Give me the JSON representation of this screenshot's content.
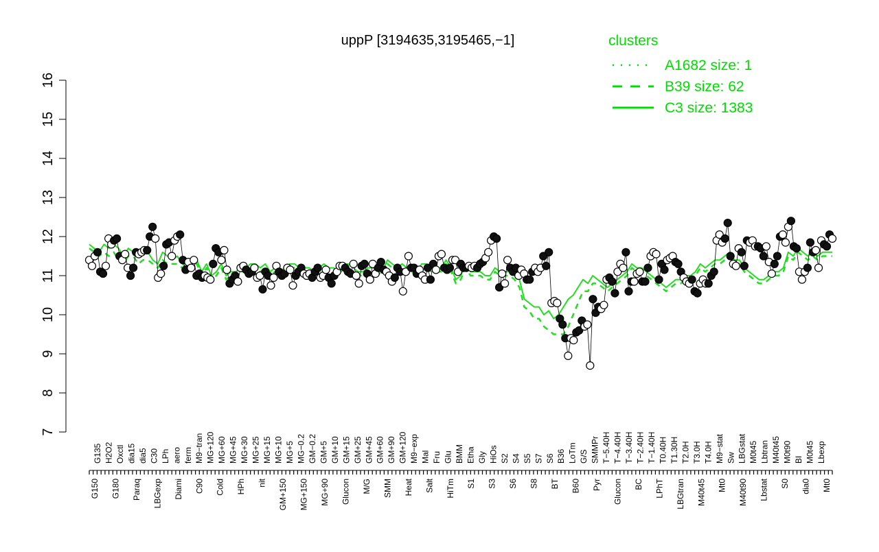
{
  "chart_data": {
    "type": "line",
    "title": "uppP [3194635,3195465,−1]",
    "xlabel": "",
    "ylabel": "",
    "ylim": [
      7,
      16
    ],
    "yticks": [
      "7",
      "8",
      "9",
      "10",
      "11",
      "12",
      "13",
      "14",
      "15",
      "16"
    ],
    "grid": false,
    "legend": {
      "title": "clusters",
      "position": "top-right",
      "color": "#00dd00",
      "entries": [
        {
          "label": "A1682 size: 1",
          "style": "dotted"
        },
        {
          "label": "B39 size: 62",
          "style": "dashed"
        },
        {
          "label": "C3 size: 1383",
          "style": "solid"
        }
      ]
    },
    "x_tick_labels_top": [
      "G135",
      "H2O2",
      "Oxctl",
      "dia15",
      "dia5",
      "C30",
      "LPh",
      "aero",
      "ferm",
      "M9−tran",
      "MG+120",
      "MG+60",
      "MG+45",
      "MG+30",
      "MG+25",
      "MG+15",
      "MG+10",
      "MG+5",
      "MG−0.2",
      "GM−0.2",
      "GM+5",
      "GM+10",
      "GM+15",
      "GM+25",
      "GM+45",
      "GM+60",
      "GM+90",
      "GM+120",
      "M9−exp",
      "Mal",
      "Fru",
      "Glu",
      "BMM",
      "Etha",
      "Gly",
      "HiOs",
      "S2",
      "S4",
      "S5",
      "S7",
      "S6",
      "B36",
      "LoTm",
      "G/S",
      "SMMPr",
      "T−5.40H",
      "T−4.40H",
      "T−3.40H",
      "T−2.40H",
      "T−1.40H",
      "T0.40H",
      "T1.30H",
      "T2.0H",
      "T3.0H",
      "T4.0H",
      "M9−stat",
      "Sw",
      "LBGstat",
      "M0t45",
      "Lbtran",
      "M40t45",
      "M0t90",
      "BI",
      "M0t45",
      "Lbexp"
    ],
    "x_tick_labels_bottom": [
      "G150",
      "G180",
      "Paraq",
      "LBGexp",
      "Diami",
      "C90",
      "Cold",
      "HPh",
      "nit",
      "GM+150",
      "MG+150",
      "MG+90",
      "Glucon",
      "M/G",
      "SMM",
      "Heat",
      "Salt",
      "HiTm",
      "S1",
      "S3",
      "S6",
      "S8",
      "BT",
      "B60",
      "Pyr",
      "Glucon",
      "BC",
      "LPhT",
      "LBGtran",
      "M40t45",
      "Mt0",
      "M40t90",
      "Lbstat",
      "S0",
      "dia0",
      "Mt0"
    ],
    "series": [
      {
        "style": "solid",
        "values": [
          11.8,
          11.7,
          11.6,
          11.8,
          11.7,
          11.8,
          11.7,
          11.5,
          11.7,
          11.6,
          11.5,
          11.7,
          11.6,
          11.4,
          11.3,
          11.6,
          11.5,
          11.4,
          11.5,
          11.3,
          11.2,
          11.4,
          11.4,
          11.1,
          11.3,
          11.0,
          11.1,
          11.3,
          11.0,
          11.1,
          11.1,
          11.2,
          11.2,
          11.3,
          11.3,
          11.2,
          11.3,
          11.1,
          11.2,
          11.1,
          11.2,
          11.3,
          11.3,
          11.2,
          11.2,
          11.2,
          11.1,
          11.2,
          11.3,
          11.2,
          11.2,
          11.1,
          11.3,
          11.3,
          11.2,
          11.1,
          11.1,
          11.2,
          11.2,
          11.2,
          11.1,
          11.4,
          11.3,
          11.2,
          11.3,
          11.2,
          11.2,
          11.1,
          11.3,
          11.3,
          11.2,
          11.2,
          11.2,
          11.4,
          11.2,
          10.9,
          11.0,
          11.3,
          11.1,
          11.1,
          11.1,
          11.0,
          11.0,
          11.2,
          11.1,
          11.1,
          11.1,
          11.0,
          10.9,
          10.4,
          10.3,
          10.2,
          10.2,
          10.0,
          10.1,
          9.9,
          10.0,
          10.2,
          10.4,
          10.5,
          10.7,
          10.9,
          10.8,
          11.0,
          10.9,
          10.8,
          10.7,
          10.8,
          10.9,
          11.0,
          11.1,
          11.3,
          11.2,
          11.2,
          11.1,
          11.0,
          10.9,
          10.8,
          10.7,
          10.8,
          10.9,
          10.9,
          11.0,
          11.0,
          11.1,
          11.3,
          11.2,
          11.3,
          11.4,
          11.4,
          11.5,
          11.6,
          11.4,
          11.4,
          11.2,
          11.1,
          11.0,
          10.9,
          10.9,
          11.0,
          11.1,
          11.1,
          11.2,
          11.6,
          11.5,
          11.7,
          11.6,
          11.5,
          11.6,
          11.5,
          11.6,
          11.6,
          11.6
        ]
      },
      {
        "style": "dashed",
        "values": [
          11.7,
          11.6,
          11.5,
          11.6,
          11.5,
          11.6,
          11.4,
          11.3,
          11.5,
          11.5,
          11.3,
          11.4,
          11.4,
          11.3,
          11.2,
          11.4,
          11.3,
          11.3,
          11.3,
          11.2,
          11.1,
          11.3,
          11.3,
          11.0,
          11.2,
          10.9,
          11.0,
          11.2,
          10.9,
          11.0,
          11.0,
          11.1,
          11.1,
          11.2,
          11.2,
          11.1,
          11.2,
          11.0,
          11.1,
          11.0,
          11.1,
          11.2,
          11.2,
          11.1,
          11.1,
          11.1,
          11.0,
          11.1,
          11.2,
          11.1,
          11.1,
          11.0,
          11.2,
          11.2,
          11.1,
          11.0,
          11.0,
          11.1,
          11.1,
          11.1,
          11.0,
          11.3,
          11.2,
          11.1,
          11.2,
          11.1,
          11.1,
          11.0,
          11.2,
          11.2,
          11.1,
          11.1,
          11.1,
          11.3,
          11.1,
          10.8,
          10.9,
          11.2,
          11.0,
          11.0,
          11.0,
          10.9,
          10.9,
          11.1,
          11.0,
          11.0,
          11.0,
          10.9,
          10.7,
          10.2,
          10.1,
          9.9,
          9.9,
          9.7,
          9.6,
          9.5,
          9.5,
          9.5,
          9.7,
          10.0,
          10.3,
          10.6,
          10.6,
          10.8,
          10.8,
          10.7,
          10.6,
          10.7,
          10.8,
          10.9,
          11.0,
          11.2,
          11.1,
          11.1,
          11.0,
          10.9,
          10.8,
          10.7,
          10.6,
          10.7,
          10.8,
          10.8,
          10.9,
          10.9,
          11.0,
          11.2,
          11.1,
          11.2,
          11.3,
          11.3,
          11.4,
          11.5,
          11.3,
          11.3,
          11.1,
          11.0,
          10.9,
          10.8,
          10.8,
          10.9,
          11.0,
          11.0,
          11.1,
          11.5,
          11.4,
          11.6,
          11.5,
          11.4,
          11.5,
          11.4,
          11.5,
          11.5,
          11.5
        ]
      }
    ],
    "points": [
      11.4,
      11.25,
      11.5,
      11.6,
      11.1,
      11.05,
      11.25,
      11.95,
      11.8,
      11.9,
      11.95,
      11.5,
      11.4,
      11.55,
      11.2,
      11.0,
      11.2,
      11.6,
      11.55,
      11.6,
      11.65,
      11.65,
      12.0,
      12.25,
      11.95,
      10.95,
      11.05,
      11.25,
      11.8,
      11.85,
      11.5,
      11.9,
      12.0,
      12.05,
      11.4,
      11.15,
      11.35,
      11.2,
      11.4,
      11.0,
      11.05,
      10.95,
      11.0,
      10.95,
      10.9,
      11.3,
      11.7,
      11.6,
      11.4,
      11.65,
      11.15,
      10.8,
      10.9,
      11.0,
      10.85,
      11.2,
      11.25,
      11.15,
      11.05,
      11.1,
      11.2,
      10.95,
      11.0,
      10.65,
      11.1,
      11.0,
      10.75,
      10.95,
      11.25,
      11.1,
      11.0,
      11.05,
      11.2,
      11.15,
      10.75,
      11.0,
      11.1,
      11.2,
      11.05,
      11.0,
      11.05,
      10.95,
      11.1,
      11.2,
      10.95,
      11.0,
      11.15,
      10.95,
      10.8,
      11.0,
      11.1,
      11.25,
      11.25,
      11.2,
      11.1,
      11.05,
      11.3,
      11.0,
      10.8,
      11.25,
      11.3,
      11.05,
      10.9,
      11.3,
      11.05,
      11.2,
      11.35,
      11.15,
      11.1,
      11.0,
      10.85,
      10.95,
      11.2,
      11.1,
      10.6,
      11.1,
      11.5,
      11.2,
      11.2,
      11.05,
      11.15,
      11.0,
      10.9,
      11.2,
      10.9,
      11.3,
      11.15,
      11.5,
      11.55,
      11.2,
      11.15,
      11.2,
      11.4,
      11.4,
      11.1,
      11.3,
      11.2,
      11.2,
      11.25,
      11.2,
      11.25,
      11.2,
      11.3,
      11.35,
      11.45,
      11.6,
      11.9,
      12.0,
      11.95,
      10.7,
      11.05,
      10.8,
      11.4,
      11.2,
      11.1,
      11.2,
      11.0,
      11.15,
      11.05,
      10.9,
      10.9,
      11.1,
      11.2,
      11.1,
      11.2,
      11.5,
      11.25,
      11.6,
      10.3,
      10.35,
      10.3,
      9.9,
      9.75,
      9.4,
      8.95,
      9.4,
      9.35,
      9.55,
      9.6,
      9.85,
      9.7,
      9.75,
      8.7,
      10.4,
      10.05,
      10.2,
      10.15,
      10.25,
      10.9,
      10.95,
      10.85,
      10.55,
      11.1,
      11.3,
      11.2,
      11.6,
      10.6,
      10.85,
      10.85,
      11.05,
      11.1,
      10.85,
      10.85,
      11.2,
      11.5,
      11.6,
      11.55,
      10.9,
      11.3,
      11.15,
      11.4,
      11.45,
      11.5,
      11.35,
      11.3,
      11.1,
      10.95,
      10.85,
      10.8,
      10.9,
      10.6,
      10.55,
      10.8,
      10.9,
      10.8,
      10.8,
      11.0,
      11.1,
      11.9,
      12.05,
      11.85,
      11.95,
      12.35,
      11.5,
      11.3,
      11.25,
      11.7,
      11.6,
      11.25,
      11.9,
      11.85,
      11.9,
      11.75,
      11.75,
      11.7,
      11.5,
      11.75,
      11.35,
      11.05,
      11.3,
      11.5,
      12.0,
      12.05,
      11.85,
      12.25,
      12.4,
      11.75,
      11.7,
      11.1,
      10.9,
      11.1,
      11.2,
      11.85,
      11.6,
      11.65,
      11.2,
      11.9,
      11.8,
      11.75,
      12.05,
      11.95
    ]
  }
}
